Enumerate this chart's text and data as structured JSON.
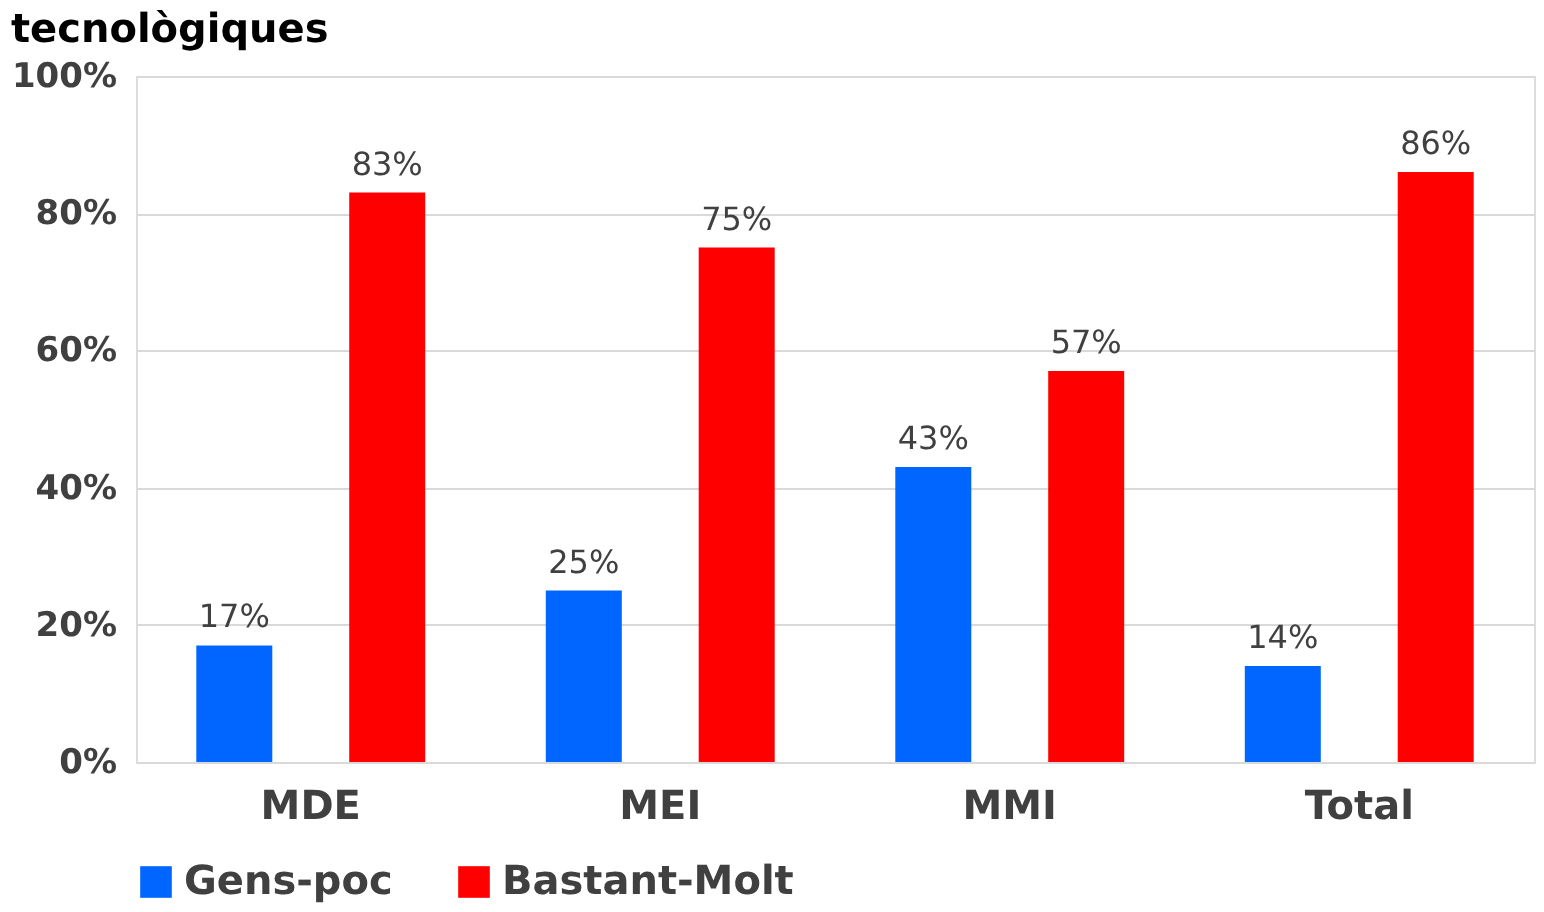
{
  "chart_data": {
    "type": "bar",
    "title": "tecnològiques",
    "categories": [
      "MDE",
      "MEI",
      "MMI",
      "Total"
    ],
    "series": [
      {
        "name": "Gens-poc",
        "color": "#0066ff",
        "values": [
          17,
          25,
          43,
          14
        ],
        "value_labels": [
          "17%",
          "25%",
          "43%",
          "14%"
        ]
      },
      {
        "name": "Bastant-Molt",
        "color": "#ff0000",
        "values": [
          83,
          75,
          57,
          86
        ],
        "value_labels": [
          "83%",
          "75%",
          "57%",
          "86%"
        ]
      }
    ],
    "ylim": [
      0,
      100
    ],
    "yticks": [
      {
        "value": 0,
        "label": "0%"
      },
      {
        "value": 20,
        "label": "20%"
      },
      {
        "value": 40,
        "label": "40%"
      },
      {
        "value": 60,
        "label": "60%"
      },
      {
        "value": 80,
        "label": "80%"
      },
      {
        "value": 100,
        "label": "100%"
      }
    ],
    "grid": "y",
    "legend": "bottom"
  }
}
